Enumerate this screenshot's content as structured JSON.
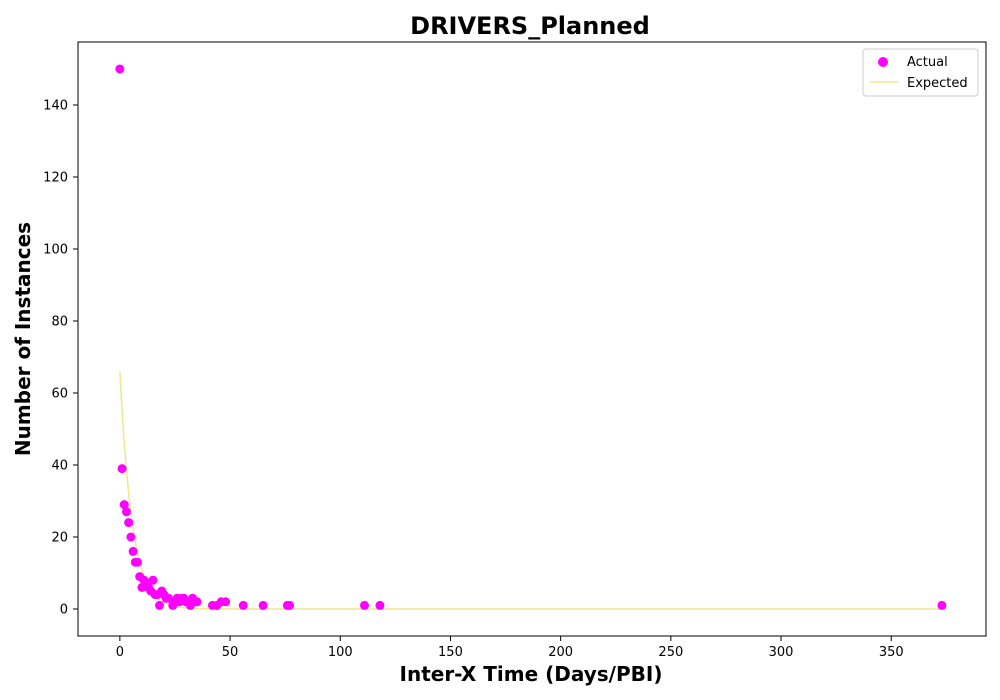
{
  "chart_data": {
    "type": "scatter",
    "title": "DRIVERS_Planned",
    "xlabel": "Inter-X Time (Days/PBI)",
    "ylabel": "Number of Instances",
    "xlim": [
      -19,
      393
    ],
    "ylim": [
      -7.5,
      157.5
    ],
    "xticks": [
      0,
      50,
      100,
      150,
      200,
      250,
      300,
      350
    ],
    "yticks": [
      0,
      20,
      40,
      60,
      80,
      100,
      120,
      140
    ],
    "grid": false,
    "legend_position": "top-right",
    "series": [
      {
        "name": "Actual",
        "kind": "scatter",
        "color": "#ff00ff",
        "points": [
          [
            0,
            150
          ],
          [
            1,
            39
          ],
          [
            2,
            29
          ],
          [
            3,
            27
          ],
          [
            4,
            24
          ],
          [
            5,
            20
          ],
          [
            6,
            16
          ],
          [
            7,
            13
          ],
          [
            8,
            13
          ],
          [
            9,
            9
          ],
          [
            10,
            6
          ],
          [
            11,
            8
          ],
          [
            12,
            7
          ],
          [
            13,
            6
          ],
          [
            14,
            5
          ],
          [
            15,
            8
          ],
          [
            16,
            4
          ],
          [
            17,
            4
          ],
          [
            18,
            1
          ],
          [
            19,
            5
          ],
          [
            20,
            4
          ],
          [
            21,
            3
          ],
          [
            22,
            3
          ],
          [
            24,
            1
          ],
          [
            25,
            2
          ],
          [
            26,
            3
          ],
          [
            27,
            2
          ],
          [
            28,
            3
          ],
          [
            29,
            3
          ],
          [
            30,
            2
          ],
          [
            31,
            2
          ],
          [
            32,
            1
          ],
          [
            33,
            3
          ],
          [
            34,
            2
          ],
          [
            35,
            2
          ],
          [
            42,
            1
          ],
          [
            44,
            1
          ],
          [
            46,
            2
          ],
          [
            48,
            2
          ],
          [
            56,
            1
          ],
          [
            65,
            1
          ],
          [
            76,
            1
          ],
          [
            77,
            1
          ],
          [
            111,
            1
          ],
          [
            118,
            1
          ],
          [
            373,
            1
          ]
        ]
      },
      {
        "name": "Expected",
        "kind": "line",
        "color": "#f0e68c",
        "points": [
          [
            0,
            66
          ],
          [
            1,
            55
          ],
          [
            2,
            46
          ],
          [
            3,
            38.5
          ],
          [
            4,
            32
          ],
          [
            5,
            26.8
          ],
          [
            6,
            22.4
          ],
          [
            7,
            18.7
          ],
          [
            8,
            15.6
          ],
          [
            9,
            13
          ],
          [
            10,
            10.9
          ],
          [
            12,
            7.6
          ],
          [
            14,
            5.3
          ],
          [
            16,
            3.7
          ],
          [
            18,
            2.6
          ],
          [
            20,
            1.8
          ],
          [
            22,
            1.3
          ],
          [
            24,
            0.9
          ],
          [
            27,
            0.5
          ],
          [
            30,
            0.3
          ],
          [
            35,
            0.1
          ],
          [
            40,
            0.03
          ],
          [
            50,
            0
          ],
          [
            100,
            0
          ],
          [
            200,
            0
          ],
          [
            300,
            0
          ],
          [
            373,
            0
          ]
        ]
      }
    ]
  }
}
